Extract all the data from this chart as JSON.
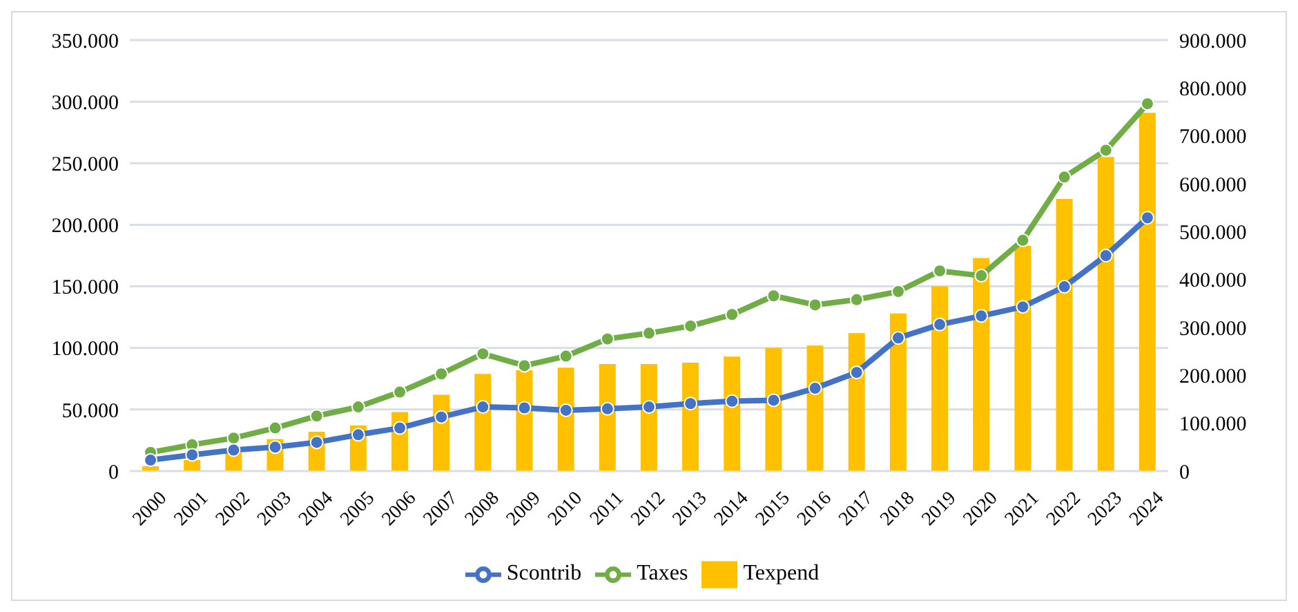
{
  "chart_data": {
    "type": "bar",
    "categories": [
      "2000",
      "2001",
      "2002",
      "2003",
      "2004",
      "2005",
      "2006",
      "2007",
      "2008",
      "2009",
      "2010",
      "2011",
      "2012",
      "2013",
      "2014",
      "2015",
      "2016",
      "2017",
      "2018",
      "2019",
      "2020",
      "2021",
      "2022",
      "2023",
      "2024"
    ],
    "series": [
      {
        "name": "Texpend",
        "color": "#ffc000",
        "values": [
          4000,
          9000,
          15000,
          26000,
          32000,
          37000,
          48000,
          62000,
          79000,
          82000,
          84000,
          87000,
          87000,
          88000,
          93000,
          100000,
          102000,
          112000,
          128000,
          150000,
          173000,
          183000,
          221000,
          255000,
          291000
        ]
      },
      {
        "name": "Taxes",
        "type": "line",
        "axis": "y2",
        "color": "#70ad47",
        "values": [
          39000,
          55000,
          69000,
          90000,
          115000,
          134000,
          165000,
          203000,
          245000,
          220000,
          240000,
          276000,
          288000,
          303000,
          327000,
          366000,
          347000,
          358000,
          375000,
          418000,
          408000,
          482000,
          614000,
          670000,
          767000
        ]
      },
      {
        "name": "Scontrib",
        "type": "line",
        "axis": "y2",
        "color": "#4472c4",
        "values": [
          23000,
          34000,
          44000,
          50000,
          60000,
          76000,
          90000,
          113000,
          134000,
          132000,
          127000,
          130000,
          134000,
          141000,
          146000,
          148000,
          173000,
          206000,
          278000,
          306000,
          324000,
          343000,
          385000,
          450000,
          529000
        ]
      }
    ],
    "ylim": [
      0,
      350000
    ],
    "yticks": [
      {
        "value": 0,
        "label": "0"
      },
      {
        "value": 50000,
        "label": "50.000"
      },
      {
        "value": 100000,
        "label": "100.000"
      },
      {
        "value": 150000,
        "label": "150.000"
      },
      {
        "value": 200000,
        "label": "200.000"
      },
      {
        "value": 250000,
        "label": "250.000"
      },
      {
        "value": 300000,
        "label": "300.000"
      },
      {
        "value": 350000,
        "label": "350.000"
      }
    ],
    "y2lim": [
      0,
      900000
    ],
    "y2ticks": [
      {
        "value": 0,
        "label": "0"
      },
      {
        "value": 100000,
        "label": "100.000"
      },
      {
        "value": 200000,
        "label": "200.000"
      },
      {
        "value": 300000,
        "label": "300.000"
      },
      {
        "value": 400000,
        "label": "400.000"
      },
      {
        "value": 500000,
        "label": "500.000"
      },
      {
        "value": 600000,
        "label": "600.000"
      },
      {
        "value": 700000,
        "label": "700.000"
      },
      {
        "value": 800000,
        "label": "800.000"
      },
      {
        "value": 900000,
        "label": "900.000"
      }
    ],
    "grid": "y",
    "legend": "bottom",
    "marker": "circle",
    "line_style": "solid"
  }
}
